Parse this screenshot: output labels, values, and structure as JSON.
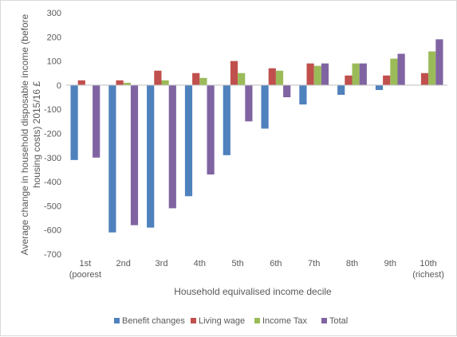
{
  "chart_data": {
    "type": "bar",
    "title": "",
    "xlabel": "Household equivalised income decile",
    "ylabel_lines": [
      "Average change in household disposable income (before",
      "housing costs) 2015/16 £"
    ],
    "categories": [
      [
        "1st",
        "(poorest"
      ],
      [
        "2nd"
      ],
      [
        "3rd"
      ],
      [
        "4th"
      ],
      [
        "5th"
      ],
      [
        "6th"
      ],
      [
        "7th"
      ],
      [
        "8th"
      ],
      [
        "9th"
      ],
      [
        "10th",
        "(richest)"
      ]
    ],
    "ylim": [
      -700,
      300
    ],
    "yticks": [
      -700,
      -600,
      -500,
      -400,
      -300,
      -200,
      -100,
      0,
      100,
      200,
      300
    ],
    "grid": false,
    "legend_position": "bottom",
    "series": [
      {
        "name": "Benefit changes",
        "color": "#4f81bd",
        "values": [
          -310,
          -610,
          -590,
          -460,
          -290,
          -180,
          -80,
          -40,
          -20,
          0
        ]
      },
      {
        "name": "Living wage",
        "color": "#c0504d",
        "values": [
          20,
          20,
          60,
          50,
          100,
          70,
          90,
          40,
          40,
          50
        ]
      },
      {
        "name": "Income Tax",
        "color": "#9bbb59",
        "values": [
          0,
          10,
          20,
          30,
          50,
          60,
          80,
          90,
          110,
          140
        ]
      },
      {
        "name": "Total",
        "color": "#8064a2",
        "values": [
          -300,
          -580,
          -510,
          -370,
          -150,
          -50,
          90,
          90,
          130,
          190
        ]
      }
    ]
  }
}
